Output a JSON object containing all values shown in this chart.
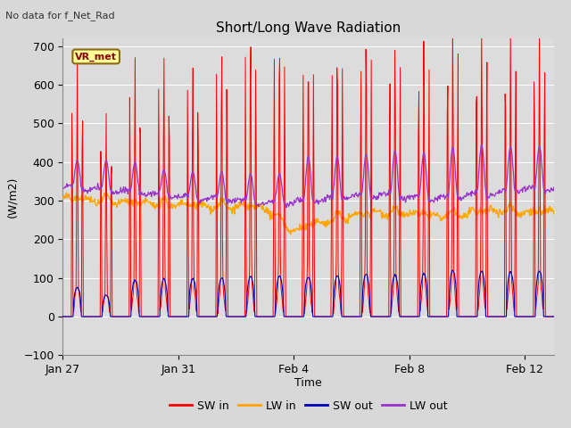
{
  "title": "Short/Long Wave Radiation",
  "subtitle": "No data for f_Net_Rad",
  "ylabel": "(W/m2)",
  "xlabel": "Time",
  "ylim": [
    -100,
    720
  ],
  "yticks": [
    -100,
    0,
    100,
    200,
    300,
    400,
    500,
    600,
    700
  ],
  "xtick_labels": [
    "Jan 27",
    "Jan 31",
    "Feb 4",
    "Feb 8",
    "Feb 12"
  ],
  "xtick_positions": [
    0,
    4,
    8,
    12,
    16
  ],
  "colors": {
    "SW_in": "#ff0000",
    "LW_in": "#ffa500",
    "SW_out": "#0000bb",
    "LW_out": "#9933cc"
  },
  "legend_labels": [
    "SW in",
    "LW in",
    "SW out",
    "LW out"
  ],
  "vr_met_label": "VR_met",
  "background_color": "#dcdcdc",
  "grid_color": "#ffffff",
  "n_days": 17,
  "figsize": [
    6.4,
    4.8
  ],
  "dpi": 100
}
